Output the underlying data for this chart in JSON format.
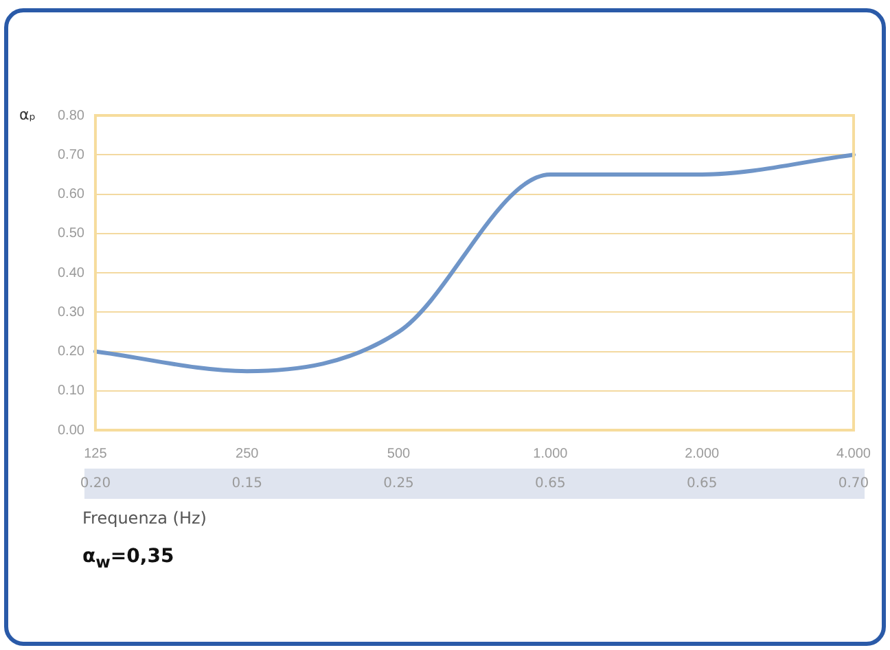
{
  "chart_data": {
    "type": "line",
    "ylabel": "αₚ",
    "xlabel": "Frequenza (Hz)",
    "categories": [
      "125",
      "250",
      "500",
      "1.000",
      "2.000",
      "4.000"
    ],
    "series": [
      {
        "color": "#6f95c8",
        "values": [
          0.2,
          0.15,
          0.25,
          0.65,
          0.65,
          0.7
        ]
      }
    ],
    "value_labels": [
      "0.20",
      "0.15",
      "0.25",
      "0.65",
      "0.65",
      "0.70"
    ],
    "ylim": [
      0,
      0.8
    ],
    "yticks": [
      {
        "value": 0,
        "label": "0.00"
      },
      {
        "value": 0.1,
        "label": "0.10"
      },
      {
        "value": 0.2,
        "label": "0.20"
      },
      {
        "value": 0.3,
        "label": "0.30"
      },
      {
        "value": 0.4,
        "label": "0.40"
      },
      {
        "value": 0.5,
        "label": "0.50"
      },
      {
        "value": 0.6,
        "label": "0.60"
      },
      {
        "value": 0.7,
        "label": "0.70"
      },
      {
        "value": 0.8,
        "label": "0.80"
      }
    ],
    "grid": "y",
    "legend": false,
    "marker": "none",
    "line_style": "solid",
    "annotations": [
      "α$_{w}$=0,35"
    ]
  }
}
